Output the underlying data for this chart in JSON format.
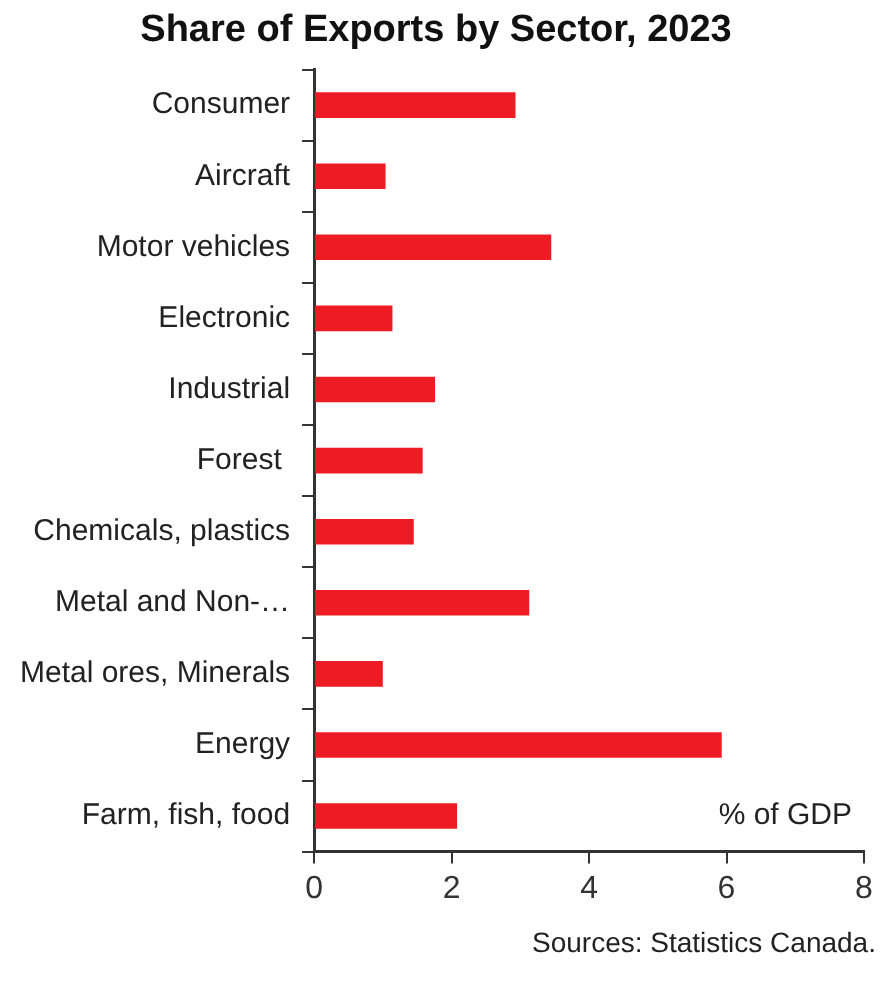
{
  "chart_data": {
    "type": "bar",
    "orientation": "horizontal",
    "title": "Share of Exports by Sector, 2023",
    "categories": [
      "Consumer",
      "Aircraft",
      "Motor vehicles",
      "Electronic",
      "Industrial",
      "Forest ",
      "Chemicals, plastics",
      "Metal and Non-…",
      "Metal ores, Minerals",
      "Energy",
      "Farm, fish, food"
    ],
    "values": [
      2.93,
      1.04,
      3.45,
      1.14,
      1.76,
      1.58,
      1.45,
      3.13,
      1.0,
      5.93,
      2.08
    ],
    "color": "#ed1c24",
    "xlim": [
      0,
      8
    ],
    "xticks": [
      0,
      2,
      4,
      6,
      8
    ],
    "grid": false,
    "legend": false,
    "annotations": [
      "% of GDP",
      "Sources: Statistics Canada."
    ]
  }
}
